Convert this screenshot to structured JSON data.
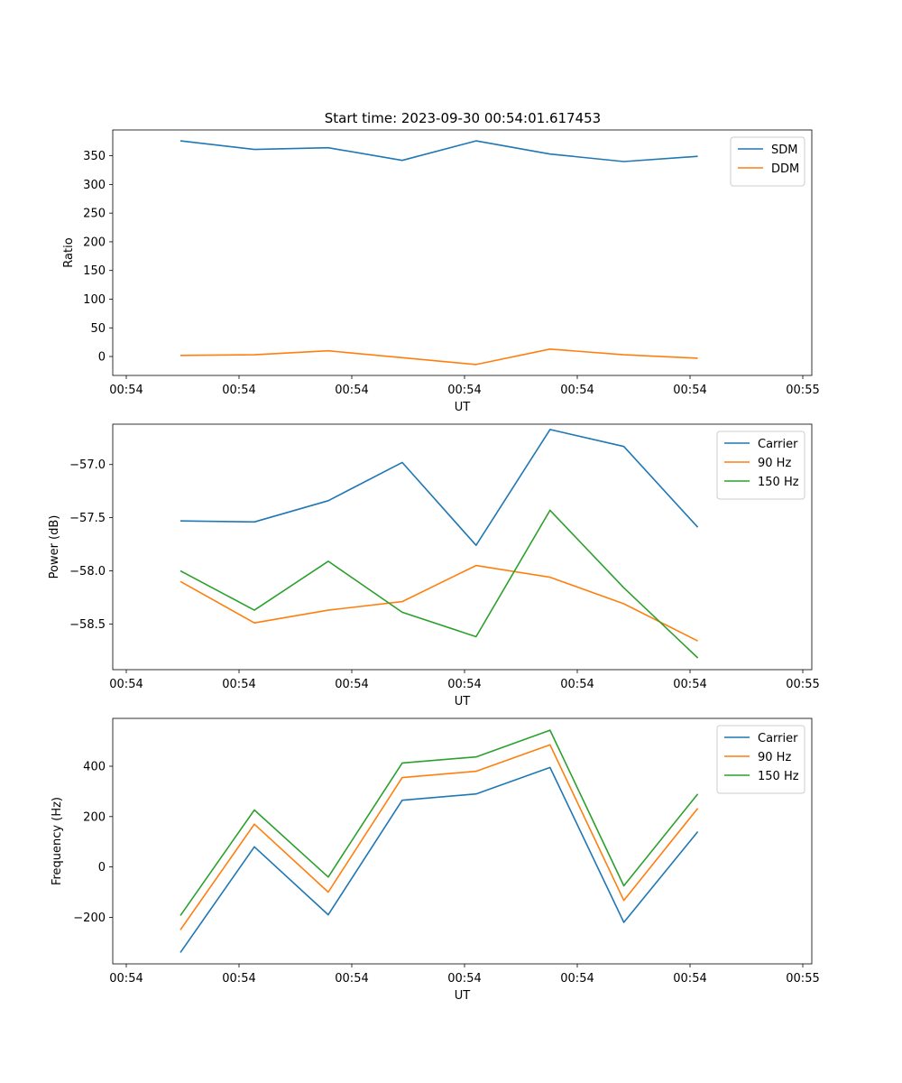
{
  "figure": {
    "title": "Start time: 2023-09-30 00:54:01.617453"
  },
  "chart_data": [
    {
      "type": "line",
      "xlabel": "UT",
      "ylabel": "Ratio",
      "x": [
        0.6,
        1.256,
        1.911,
        2.567,
        3.222,
        3.878,
        4.533,
        5.189
      ],
      "xlim": [
        0,
        6.2
      ],
      "xticks": [
        0.12,
        1.12,
        2.12,
        3.12,
        4.12,
        5.12,
        6.12
      ],
      "xticklabels": [
        "00:54",
        "00:54",
        "00:54",
        "00:54",
        "00:54",
        "00:54",
        "00:55"
      ],
      "ylim": [
        -33,
        395
      ],
      "yticks": [
        0,
        50,
        100,
        150,
        200,
        250,
        300,
        350
      ],
      "yticklabels": [
        "0",
        "50",
        "100",
        "150",
        "200",
        "250",
        "300",
        "350"
      ],
      "legend_position": "top-right",
      "series": [
        {
          "name": "SDM",
          "color": "#1f77b4",
          "values": [
            376,
            361,
            364,
            342,
            376,
            353,
            340,
            349
          ]
        },
        {
          "name": "DDM",
          "color": "#ff7f0e",
          "values": [
            2,
            3,
            10,
            -2,
            -14,
            13,
            3,
            -3
          ]
        }
      ]
    },
    {
      "type": "line",
      "xlabel": "UT",
      "ylabel": "Power (dB)",
      "x": [
        0.6,
        1.256,
        1.911,
        2.567,
        3.222,
        3.878,
        4.533,
        5.189
      ],
      "xlim": [
        0,
        6.2
      ],
      "xticks": [
        0.12,
        1.12,
        2.12,
        3.12,
        4.12,
        5.12,
        6.12
      ],
      "xticklabels": [
        "00:54",
        "00:54",
        "00:54",
        "00:54",
        "00:54",
        "00:54",
        "00:55"
      ],
      "ylim": [
        -58.93,
        -56.62
      ],
      "yticks": [
        -58.5,
        -58.0,
        -57.5,
        -57.0
      ],
      "yticklabels": [
        "−58.5",
        "−58.0",
        "−57.5",
        "−57.0"
      ],
      "legend_position": "top-right",
      "series": [
        {
          "name": "Carrier",
          "color": "#1f77b4",
          "values": [
            -57.53,
            -57.54,
            -57.34,
            -56.98,
            -57.76,
            -56.67,
            -56.83,
            -57.59
          ]
        },
        {
          "name": "90 Hz",
          "color": "#ff7f0e",
          "values": [
            -58.1,
            -58.49,
            -58.37,
            -58.29,
            -57.95,
            -58.06,
            -58.31,
            -58.66
          ]
        },
        {
          "name": "150 Hz",
          "color": "#2ca02c",
          "values": [
            -58.0,
            -58.37,
            -57.91,
            -58.39,
            -58.62,
            -57.43,
            -58.16,
            -58.82
          ]
        }
      ]
    },
    {
      "type": "line",
      "xlabel": "UT",
      "ylabel": "Frequency (Hz)",
      "x": [
        0.6,
        1.256,
        1.911,
        2.567,
        3.222,
        3.878,
        4.533,
        5.189
      ],
      "xlim": [
        0,
        6.2
      ],
      "xticks": [
        0.12,
        1.12,
        2.12,
        3.12,
        4.12,
        5.12,
        6.12
      ],
      "xticklabels": [
        "00:54",
        "00:54",
        "00:54",
        "00:54",
        "00:54",
        "00:54",
        "00:55"
      ],
      "ylim": [
        -385,
        590
      ],
      "yticks": [
        -200,
        0,
        200,
        400
      ],
      "yticklabels": [
        "−200",
        "0",
        "200",
        "400"
      ],
      "legend_position": "top-right",
      "series": [
        {
          "name": "Carrier",
          "color": "#1f77b4",
          "values": [
            -340,
            80,
            -190,
            265,
            290,
            395,
            -220,
            140
          ]
        },
        {
          "name": "90 Hz",
          "color": "#ff7f0e",
          "values": [
            -250,
            170,
            -100,
            355,
            380,
            485,
            -133,
            233
          ]
        },
        {
          "name": "150 Hz",
          "color": "#2ca02c",
          "values": [
            -193,
            226,
            -40,
            413,
            437,
            543,
            -75,
            290
          ]
        }
      ]
    }
  ]
}
